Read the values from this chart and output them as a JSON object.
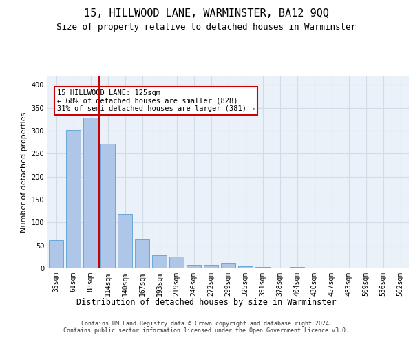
{
  "title_line1": "15, HILLWOOD LANE, WARMINSTER, BA12 9QQ",
  "title_line2": "Size of property relative to detached houses in Warminster",
  "xlabel": "Distribution of detached houses by size in Warminster",
  "ylabel": "Number of detached properties",
  "categories": [
    "35sqm",
    "61sqm",
    "88sqm",
    "114sqm",
    "140sqm",
    "167sqm",
    "193sqm",
    "219sqm",
    "246sqm",
    "272sqm",
    "299sqm",
    "325sqm",
    "351sqm",
    "378sqm",
    "404sqm",
    "430sqm",
    "457sqm",
    "483sqm",
    "509sqm",
    "536sqm",
    "562sqm"
  ],
  "values": [
    62,
    301,
    329,
    271,
    118,
    63,
    28,
    26,
    8,
    8,
    12,
    4,
    3,
    0,
    3,
    0,
    0,
    0,
    0,
    0,
    1
  ],
  "bar_color": "#aec6e8",
  "bar_edge_color": "#5a9fd4",
  "vline_x_index": 2.5,
  "vline_color": "#cc0000",
  "annotation_text": "15 HILLWOOD LANE: 125sqm\n← 68% of detached houses are smaller (828)\n31% of semi-detached houses are larger (381) →",
  "annotation_box_color": "#ffffff",
  "annotation_box_edge_color": "#cc0000",
  "ylim": [
    0,
    420
  ],
  "yticks": [
    0,
    50,
    100,
    150,
    200,
    250,
    300,
    350,
    400
  ],
  "grid_color": "#d0dce8",
  "bg_color": "#eaf1f8",
  "footer": "Contains HM Land Registry data © Crown copyright and database right 2024.\nContains public sector information licensed under the Open Government Licence v3.0.",
  "title_fontsize": 11,
  "subtitle_fontsize": 9,
  "tick_fontsize": 7,
  "ylabel_fontsize": 8,
  "xlabel_fontsize": 8.5,
  "annotation_fontsize": 7.5,
  "footer_fontsize": 6
}
